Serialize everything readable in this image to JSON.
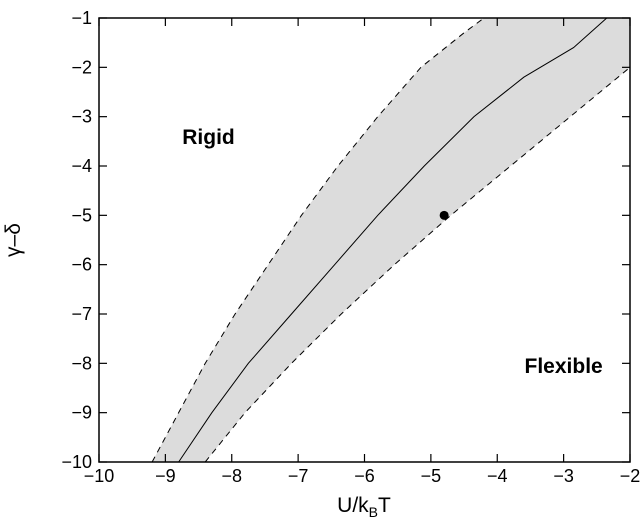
{
  "chart_data": {
    "type": "area",
    "x_axis": {
      "label_main": "U/k",
      "label_sub": "B",
      "label_tail": "T",
      "range": [
        -10,
        -2
      ],
      "ticks": [
        -10,
        -9,
        -8,
        -7,
        -6,
        -5,
        -4,
        -3,
        -2
      ],
      "tick_labels": [
        "−10",
        "−9",
        "−8",
        "−7",
        "−6",
        "−5",
        "−4",
        "−3",
        "−2"
      ]
    },
    "y_axis": {
      "label": "γ–δ",
      "range": [
        -10,
        -1
      ],
      "ticks": [
        -10,
        -9,
        -8,
        -7,
        -6,
        -5,
        -4,
        -3,
        -2,
        -1
      ],
      "tick_labels": [
        "−10",
        "−9",
        "−8",
        "−7",
        "−6",
        "−5",
        "−4",
        "−3",
        "−2",
        "−1"
      ]
    },
    "grid": false,
    "legend": "none",
    "band": {
      "fill_color": "#dcdcdc",
      "upper_boundary": [
        {
          "x": -9.2,
          "y": -10
        },
        {
          "x": -8.8,
          "y": -9
        },
        {
          "x": -8.4,
          "y": -8
        },
        {
          "x": -7.95,
          "y": -7
        },
        {
          "x": -7.45,
          "y": -6
        },
        {
          "x": -6.95,
          "y": -5
        },
        {
          "x": -6.4,
          "y": -4
        },
        {
          "x": -5.8,
          "y": -3
        },
        {
          "x": -5.15,
          "y": -2
        },
        {
          "x": -4.5,
          "y": -1.3
        },
        {
          "x": -4.2,
          "y": -1
        }
      ],
      "lower_boundary": [
        {
          "x": -8.4,
          "y": -10
        },
        {
          "x": -7.8,
          "y": -9
        },
        {
          "x": -7.1,
          "y": -8
        },
        {
          "x": -6.35,
          "y": -7
        },
        {
          "x": -5.55,
          "y": -6
        },
        {
          "x": -4.7,
          "y": -5
        },
        {
          "x": -3.8,
          "y": -4
        },
        {
          "x": -2.9,
          "y": -3
        },
        {
          "x": -2.0,
          "y": -2.0
        }
      ],
      "boundary_style": "dashed"
    },
    "center_line": [
      {
        "x": -8.8,
        "y": -10
      },
      {
        "x": -8.3,
        "y": -9
      },
      {
        "x": -7.75,
        "y": -8
      },
      {
        "x": -7.1,
        "y": -7
      },
      {
        "x": -6.45,
        "y": -6
      },
      {
        "x": -5.8,
        "y": -5
      },
      {
        "x": -5.1,
        "y": -4
      },
      {
        "x": -4.35,
        "y": -3
      },
      {
        "x": -3.6,
        "y": -2.2
      },
      {
        "x": -2.85,
        "y": -1.6
      },
      {
        "x": -2.35,
        "y": -1
      }
    ],
    "marker": {
      "x": -4.8,
      "y": -5
    },
    "annotations": [
      {
        "text": "Rigid",
        "x": -8.35,
        "y": -3.55
      },
      {
        "text": "Flexible",
        "x": -3.0,
        "y": -8.2
      }
    ]
  }
}
